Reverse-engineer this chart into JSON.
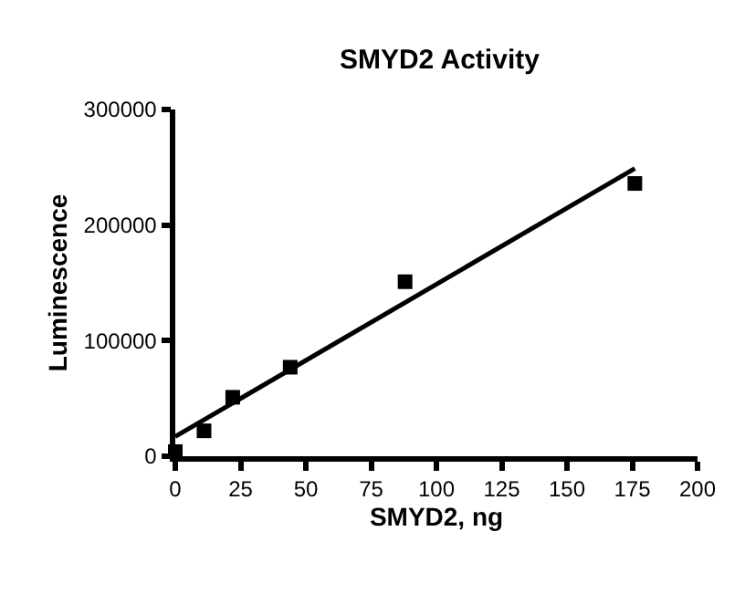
{
  "chart_data": {
    "type": "scatter",
    "title": "SMYD2 Activity",
    "xlabel": "SMYD2, ng",
    "ylabel": "Luminescence",
    "x": [
      0,
      11,
      22,
      44,
      88,
      176
    ],
    "series": [
      {
        "color": "#000000",
        "marker": "square",
        "values": [
          4000,
          22000,
          51000,
          77000,
          151000,
          236000
        ]
      },
      {
        "type": "line",
        "color": "#000000",
        "x": [
          0,
          176
        ],
        "values": [
          17000,
          249000
        ],
        "line_style": "solid"
      }
    ],
    "xlim": [
      0,
      200
    ],
    "xticks": [
      0,
      25,
      50,
      75,
      100,
      125,
      150,
      175,
      200
    ],
    "ylim": [
      0,
      300000
    ],
    "yticks": [
      0,
      100000,
      200000,
      300000
    ],
    "legend": false
  }
}
